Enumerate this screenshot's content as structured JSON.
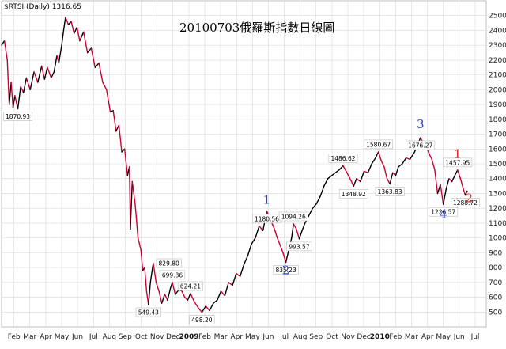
{
  "header": {
    "symbol": "$RTSI (Daily) 1316.65"
  },
  "chart_data": {
    "type": "line",
    "title": "20100703俄羅斯指數日線圖",
    "ylim": [
      400,
      2600
    ],
    "yticks": [
      500,
      600,
      700,
      800,
      900,
      1000,
      1100,
      1200,
      1300,
      1400,
      1500,
      1600,
      1700,
      1800,
      1900,
      2000,
      2100,
      2200,
      2300,
      2400,
      2500
    ],
    "xlim": [
      2008.06,
      2010.6
    ],
    "xticks": [
      {
        "label": "Feb",
        "x": 2008.125,
        "bold": false
      },
      {
        "label": "Mar",
        "x": 2008.208,
        "bold": false
      },
      {
        "label": "Apr",
        "x": 2008.292,
        "bold": false
      },
      {
        "label": "May",
        "x": 2008.375,
        "bold": false
      },
      {
        "label": "Jun",
        "x": 2008.458,
        "bold": false
      },
      {
        "label": "Jul",
        "x": 2008.542,
        "bold": false
      },
      {
        "label": "Aug",
        "x": 2008.625,
        "bold": false
      },
      {
        "label": "Sep",
        "x": 2008.708,
        "bold": false
      },
      {
        "label": "Oct",
        "x": 2008.792,
        "bold": false
      },
      {
        "label": "Nov",
        "x": 2008.875,
        "bold": false
      },
      {
        "label": "Dec",
        "x": 2008.958,
        "bold": false
      },
      {
        "label": "2009",
        "x": 2009.042,
        "bold": true
      },
      {
        "label": "Feb",
        "x": 2009.125,
        "bold": false
      },
      {
        "label": "Mar",
        "x": 2009.208,
        "bold": false
      },
      {
        "label": "Apr",
        "x": 2009.292,
        "bold": false
      },
      {
        "label": "May",
        "x": 2009.375,
        "bold": false
      },
      {
        "label": "Jun",
        "x": 2009.458,
        "bold": false
      },
      {
        "label": "Jul",
        "x": 2009.542,
        "bold": false
      },
      {
        "label": "Aug",
        "x": 2009.625,
        "bold": false
      },
      {
        "label": "Sep",
        "x": 2009.708,
        "bold": false
      },
      {
        "label": "Oct",
        "x": 2009.792,
        "bold": false
      },
      {
        "label": "Nov",
        "x": 2009.875,
        "bold": false
      },
      {
        "label": "Dec",
        "x": 2009.958,
        "bold": false
      },
      {
        "label": "2010",
        "x": 2010.042,
        "bold": true
      },
      {
        "label": "Feb",
        "x": 2010.125,
        "bold": false
      },
      {
        "label": "Mar",
        "x": 2010.208,
        "bold": false
      },
      {
        "label": "Apr",
        "x": 2010.292,
        "bold": false
      },
      {
        "label": "May",
        "x": 2010.375,
        "bold": false
      },
      {
        "label": "Jun",
        "x": 2010.458,
        "bold": false
      },
      {
        "label": "Jul",
        "x": 2010.542,
        "bold": false
      }
    ],
    "grid": true,
    "colors": {
      "up": "#000000",
      "down": "#cc0033",
      "grid": "#d8d8d8",
      "wave_blue": "#3344cc",
      "wave_red": "#dd2222"
    },
    "series": [
      {
        "values": [
          [
            2008.06,
            2300
          ],
          [
            2008.075,
            2330
          ],
          [
            2008.09,
            2200
          ],
          [
            2008.1,
            1900
          ],
          [
            2008.11,
            2050
          ],
          [
            2008.12,
            1880
          ],
          [
            2008.13,
            1960
          ],
          [
            2008.145,
            1870.93
          ],
          [
            2008.16,
            2020
          ],
          [
            2008.175,
            1980
          ],
          [
            2008.19,
            2080
          ],
          [
            2008.21,
            2000
          ],
          [
            2008.23,
            2120
          ],
          [
            2008.25,
            2050
          ],
          [
            2008.27,
            2160
          ],
          [
            2008.285,
            2070
          ],
          [
            2008.3,
            2150
          ],
          [
            2008.32,
            2080
          ],
          [
            2008.335,
            2120
          ],
          [
            2008.35,
            2230
          ],
          [
            2008.36,
            2180
          ],
          [
            2008.375,
            2300
          ],
          [
            2008.385,
            2400
          ],
          [
            2008.395,
            2488
          ],
          [
            2008.41,
            2440
          ],
          [
            2008.425,
            2460
          ],
          [
            2008.44,
            2380
          ],
          [
            2008.455,
            2420
          ],
          [
            2008.47,
            2330
          ],
          [
            2008.49,
            2390
          ],
          [
            2008.51,
            2250
          ],
          [
            2008.53,
            2280
          ],
          [
            2008.55,
            2150
          ],
          [
            2008.57,
            2180
          ],
          [
            2008.59,
            2050
          ],
          [
            2008.61,
            2000
          ],
          [
            2008.63,
            1850
          ],
          [
            2008.645,
            1860
          ],
          [
            2008.66,
            1720
          ],
          [
            2008.675,
            1760
          ],
          [
            2008.69,
            1580
          ],
          [
            2008.705,
            1600
          ],
          [
            2008.72,
            1420
          ],
          [
            2008.73,
            1480
          ],
          [
            2008.735,
            1060
          ],
          [
            2008.745,
            1380
          ],
          [
            2008.76,
            1230
          ],
          [
            2008.775,
            1000
          ],
          [
            2008.79,
            920
          ],
          [
            2008.8,
            780
          ],
          [
            2008.81,
            800
          ],
          [
            2008.82,
            640
          ],
          [
            2008.83,
            549.43
          ],
          [
            2008.84,
            700
          ],
          [
            2008.855,
            829.8
          ],
          [
            2008.87,
            700
          ],
          [
            2008.885,
            640
          ],
          [
            2008.9,
            560
          ],
          [
            2008.915,
            620
          ],
          [
            2008.93,
            580
          ],
          [
            2008.945,
            660
          ],
          [
            2008.955,
            699.86
          ],
          [
            2008.97,
            620
          ],
          [
            2008.99,
            650
          ],
          [
            2009.005,
            640
          ],
          [
            2009.02,
            600
          ],
          [
            2009.035,
            580
          ],
          [
            2009.05,
            624.21
          ],
          [
            2009.07,
            570
          ],
          [
            2009.09,
            530
          ],
          [
            2009.11,
            498.2
          ],
          [
            2009.13,
            540
          ],
          [
            2009.15,
            510
          ],
          [
            2009.17,
            560
          ],
          [
            2009.19,
            580
          ],
          [
            2009.21,
            640
          ],
          [
            2009.23,
            610
          ],
          [
            2009.25,
            700
          ],
          [
            2009.27,
            680
          ],
          [
            2009.29,
            760
          ],
          [
            2009.31,
            740
          ],
          [
            2009.33,
            820
          ],
          [
            2009.35,
            880
          ],
          [
            2009.37,
            960
          ],
          [
            2009.39,
            1000
          ],
          [
            2009.41,
            1080
          ],
          [
            2009.43,
            1050
          ],
          [
            2009.45,
            1180.56
          ],
          [
            2009.47,
            1120
          ],
          [
            2009.49,
            1060
          ],
          [
            2009.505,
            1000
          ],
          [
            2009.52,
            950
          ],
          [
            2009.535,
            900
          ],
          [
            2009.55,
            835.23
          ],
          [
            2009.565,
            920
          ],
          [
            2009.58,
            1000
          ],
          [
            2009.59,
            1094.26
          ],
          [
            2009.605,
            1060
          ],
          [
            2009.62,
            993.57
          ],
          [
            2009.635,
            1050
          ],
          [
            2009.65,
            1100
          ],
          [
            2009.67,
            1150
          ],
          [
            2009.69,
            1200
          ],
          [
            2009.71,
            1230
          ],
          [
            2009.73,
            1280
          ],
          [
            2009.75,
            1350
          ],
          [
            2009.77,
            1400
          ],
          [
            2009.79,
            1420
          ],
          [
            2009.81,
            1440
          ],
          [
            2009.83,
            1460
          ],
          [
            2009.85,
            1486.62
          ],
          [
            2009.87,
            1440
          ],
          [
            2009.89,
            1390
          ],
          [
            2009.905,
            1348.92
          ],
          [
            2009.92,
            1400
          ],
          [
            2009.94,
            1380
          ],
          [
            2009.96,
            1450
          ],
          [
            2009.98,
            1440
          ],
          [
            2010.0,
            1500
          ],
          [
            2010.02,
            1540
          ],
          [
            2010.035,
            1580.67
          ],
          [
            2010.05,
            1520
          ],
          [
            2010.065,
            1480
          ],
          [
            2010.08,
            1400
          ],
          [
            2010.095,
            1363.83
          ],
          [
            2010.11,
            1440
          ],
          [
            2010.125,
            1420
          ],
          [
            2010.14,
            1480
          ],
          [
            2010.16,
            1500
          ],
          [
            2010.18,
            1540
          ],
          [
            2010.2,
            1530
          ],
          [
            2010.22,
            1570
          ],
          [
            2010.24,
            1620
          ],
          [
            2010.255,
            1676.27
          ],
          [
            2010.27,
            1640
          ],
          [
            2010.285,
            1620
          ],
          [
            2010.3,
            1570
          ],
          [
            2010.315,
            1530
          ],
          [
            2010.33,
            1460
          ],
          [
            2010.345,
            1300
          ],
          [
            2010.36,
            1360
          ],
          [
            2010.375,
            1226.57
          ],
          [
            2010.39,
            1330
          ],
          [
            2010.405,
            1400
          ],
          [
            2010.42,
            1380
          ],
          [
            2010.435,
            1420
          ],
          [
            2010.45,
            1457.95
          ],
          [
            2010.465,
            1400
          ],
          [
            2010.48,
            1330
          ],
          [
            2010.49,
            1288.72
          ],
          [
            2010.5,
            1316.65
          ]
        ]
      }
    ],
    "annotations": [
      {
        "text": "1870.93",
        "x": 2008.145,
        "y": 1870.93,
        "pos": "below"
      },
      {
        "text": "829.80",
        "x": 2008.855,
        "y": 829.8,
        "pos": "right"
      },
      {
        "text": "549.43",
        "x": 2008.83,
        "y": 549.43,
        "pos": "below"
      },
      {
        "text": "699.86",
        "x": 2008.955,
        "y": 699.86,
        "pos": "above"
      },
      {
        "text": "624.21",
        "x": 2009.05,
        "y": 624.21,
        "pos": "above"
      },
      {
        "text": "498.20",
        "x": 2009.11,
        "y": 498.2,
        "pos": "below"
      },
      {
        "text": "1180.56",
        "x": 2009.45,
        "y": 1180.56,
        "pos": "below"
      },
      {
        "text": "835.23",
        "x": 2009.55,
        "y": 835.23,
        "pos": "below"
      },
      {
        "text": "1094.26",
        "x": 2009.59,
        "y": 1094.26,
        "pos": "above"
      },
      {
        "text": "993.57",
        "x": 2009.62,
        "y": 993.57,
        "pos": "below"
      },
      {
        "text": "1486.62",
        "x": 2009.85,
        "y": 1486.62,
        "pos": "above"
      },
      {
        "text": "1348.92",
        "x": 2009.905,
        "y": 1348.92,
        "pos": "below"
      },
      {
        "text": "1580.67",
        "x": 2010.035,
        "y": 1580.67,
        "pos": "above"
      },
      {
        "text": "1363.83",
        "x": 2010.095,
        "y": 1363.83,
        "pos": "below"
      },
      {
        "text": "1676.27",
        "x": 2010.255,
        "y": 1676.27,
        "pos": "below"
      },
      {
        "text": "1457.95",
        "x": 2010.45,
        "y": 1457.95,
        "pos": "above"
      },
      {
        "text": "1226.57",
        "x": 2010.375,
        "y": 1226.57,
        "pos": "below"
      },
      {
        "text": "1288.72",
        "x": 2010.49,
        "y": 1288.72,
        "pos": "below"
      }
    ],
    "wave_labels": [
      {
        "text": "1",
        "x": 2009.45,
        "y": 1230,
        "color": "blue"
      },
      {
        "text": "2",
        "x": 2009.55,
        "y": 755,
        "color": "blue"
      },
      {
        "text": "3",
        "x": 2010.255,
        "y": 1740,
        "color": "blue"
      },
      {
        "text": "4",
        "x": 2010.375,
        "y": 1135,
        "color": "blue"
      },
      {
        "text": "1",
        "x": 2010.45,
        "y": 1540,
        "color": "red"
      },
      {
        "text": "2",
        "x": 2010.51,
        "y": 1240,
        "color": "red"
      }
    ]
  }
}
